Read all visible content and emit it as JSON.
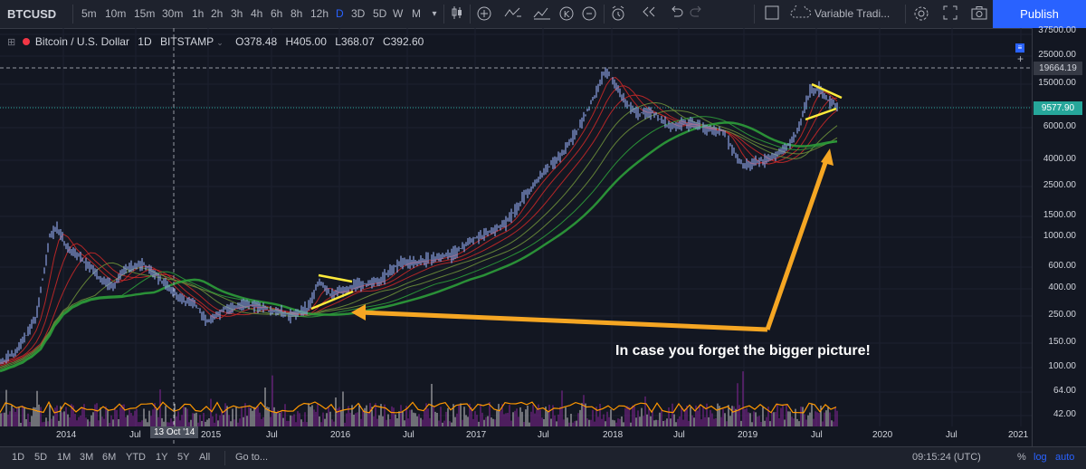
{
  "toolbar": {
    "symbol": "BTCUSD",
    "timeframes": [
      "5m",
      "10m",
      "15m",
      "30m",
      "1h",
      "2h",
      "3h",
      "4h",
      "6h",
      "8h",
      "12h",
      "D",
      "3D",
      "5D",
      "W",
      "M"
    ],
    "active_timeframe": "D",
    "layout_name": "Variable Tradi...",
    "publish_label": "Publish"
  },
  "legend": {
    "title": "Bitcoin / U.S. Dollar",
    "interval": "1D",
    "exchange": "BITSTAMP",
    "open": "O378.48",
    "high": "H405.00",
    "low": "L368.07",
    "close": "C392.60"
  },
  "price_axis": {
    "ticks": [
      "37500.00",
      "25000.00",
      "15000.00",
      "10000.00",
      "6000.00",
      "4000.00",
      "2500.00",
      "1500.00",
      "1000.00",
      "600.00",
      "400.00",
      "250.00",
      "150.00",
      "100.00",
      "64.00",
      "42.00"
    ],
    "crosshair_price": "19664.19",
    "last_price": "9577.90",
    "last_price_color": "#26a69a"
  },
  "time_axis": {
    "labels": [
      "2014",
      "Jul",
      "2015",
      "Jul",
      "2016",
      "Jul",
      "2017",
      "Jul",
      "2018",
      "Jul",
      "2019",
      "Jul",
      "2020",
      "Jul",
      "2021"
    ],
    "cursor_date": "13 Oct '14"
  },
  "annotation": {
    "text": "In case you forget the bigger picture!",
    "arrow_color": "#f5a623",
    "trend_line_color": "#ffeb3b"
  },
  "bottom": {
    "ranges": [
      "1D",
      "5D",
      "1M",
      "3M",
      "6M",
      "YTD",
      "1Y",
      "5Y",
      "All"
    ],
    "goto": "Go to...",
    "time": "09:15:24 (UTC)",
    "pct": "%",
    "log": "log",
    "auto": "auto"
  },
  "colors": {
    "background": "#131722",
    "candle": "#8aa0e0",
    "ribbon_red": "#e53935",
    "ribbon_green": "#2e9d3a",
    "volume": "#9c27b0",
    "volume_ma": "#ff9800",
    "accent": "#2962ff"
  }
}
